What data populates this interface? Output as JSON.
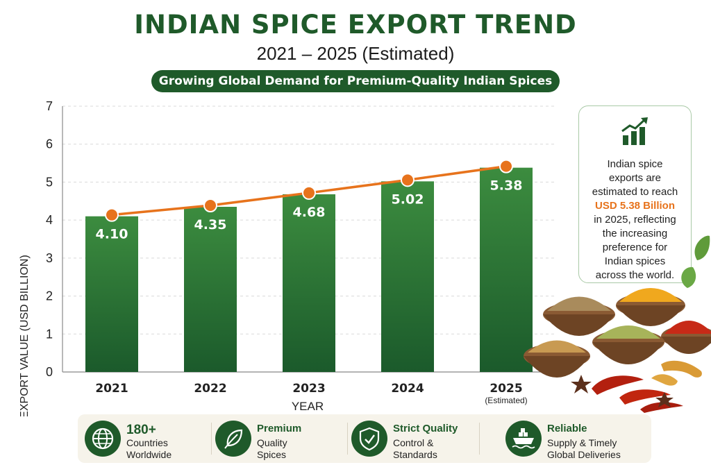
{
  "title": "INDIAN SPICE EXPORT TREND",
  "subtitle": "2021 – 2025 (Estimated)",
  "ribbon": "Growing Global Demand for Premium-Quality Indian Spices",
  "chart_data": {
    "type": "bar",
    "categories": [
      "2021",
      "2022",
      "2023",
      "2024",
      "2025"
    ],
    "category_notes": [
      "",
      "",
      "",
      "",
      "(Estimated)"
    ],
    "values": [
      4.1,
      4.35,
      4.68,
      5.02,
      5.38
    ],
    "value_labels": [
      "4.10",
      "4.35",
      "4.68",
      "5.02",
      "5.38"
    ],
    "trend_line": true,
    "xlabel": "YEAR",
    "ylabel": "EXPORT VALUE (USD BILLION)",
    "ylim": [
      0,
      7
    ],
    "yticks": [
      0,
      1,
      2,
      3,
      4,
      5,
      6,
      7
    ],
    "grid": true,
    "colors": {
      "bar_top": "#3c8c3f",
      "bar_bottom": "#1b5a2b",
      "trend": "#e7731c"
    }
  },
  "info_card": {
    "icon": "growth-chart-icon",
    "line1": "Indian spice",
    "line2": "exports are",
    "line3": "estimated to reach",
    "highlight": "USD 5.38 Billion",
    "line4": "in 2025, reflecting",
    "line5": "the increasing",
    "line6": "preference for",
    "line7": "Indian spices",
    "line8": "across the world."
  },
  "features": [
    {
      "icon": "globe-icon",
      "title": "180+",
      "line1": "Countries",
      "line2": "Worldwide"
    },
    {
      "icon": "leaf-icon",
      "title": "Premium",
      "line1": "Quality",
      "line2": "Spices"
    },
    {
      "icon": "shield-check-icon",
      "title": "Strict Quality",
      "line1": "Control &",
      "line2": "Standards"
    },
    {
      "icon": "cargo-ship-icon",
      "title": "Reliable",
      "line1": "Supply & Timely",
      "line2": "Global Deliveries"
    }
  ],
  "colors": {
    "brand_green": "#1f5a2a",
    "accent_orange": "#e7731c",
    "footer_bg": "#f6f3ea"
  }
}
